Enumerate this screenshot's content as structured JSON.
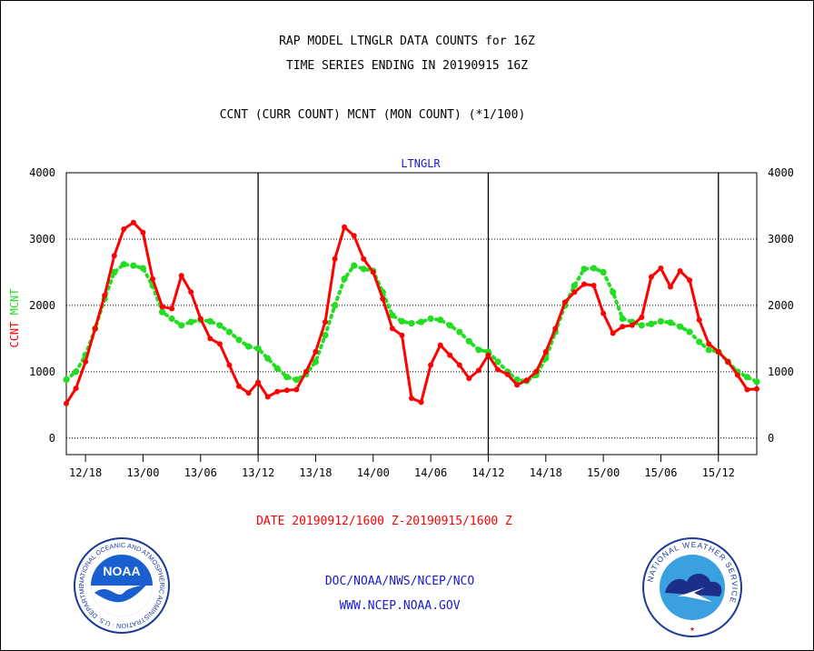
{
  "header": {
    "title_line1": "RAP MODEL LTNGLR DATA COUNTS for 16Z",
    "title_line2": "TIME SERIES ENDING IN 20190915 16Z",
    "subtitle": "CCNT (CURR COUNT) MCNT (MON COUNT) (*1/100)"
  },
  "date_range": "DATE 20190912/1600 Z-20190915/1600 Z",
  "footer": {
    "line1": "DOC/NOAA/NWS/NCEP/NCO",
    "line2": "WWW.NCEP.NOAA.GOV"
  },
  "logos": {
    "left": {
      "name": "NOAA",
      "ring_text": "NATIONAL OCEANIC AND ATMOSPHERIC ADMINISTRATION · U.S. DEPARTMENT OF COMMERCE ·"
    },
    "right": {
      "name": "National Weather Service",
      "ring_text": "NATIONAL WEATHER SERVICE"
    }
  },
  "colors": {
    "ccnt": "#ff0000",
    "mcnt": "#22dd22",
    "label_blue": "#1a1acc",
    "axis": "#000000"
  },
  "chart_data": {
    "type": "line",
    "title": "LTNGLR",
    "ylabel_left": [
      "CCNT",
      "MCNT"
    ],
    "ylim": [
      -250,
      4000
    ],
    "yticks": [
      0,
      1000,
      2000,
      3000,
      4000
    ],
    "x_step_hours": 1,
    "x_start_label": "12/16",
    "x_end_label": "15/16",
    "xticks": [
      {
        "label": "12/18",
        "hour": 2
      },
      {
        "label": "13/00",
        "hour": 8
      },
      {
        "label": "13/06",
        "hour": 14
      },
      {
        "label": "13/12",
        "hour": 20
      },
      {
        "label": "13/18",
        "hour": 26
      },
      {
        "label": "14/00",
        "hour": 32
      },
      {
        "label": "14/06",
        "hour": 38
      },
      {
        "label": "14/12",
        "hour": 44
      },
      {
        "label": "14/18",
        "hour": 50
      },
      {
        "label": "15/00",
        "hour": 56
      },
      {
        "label": "15/06",
        "hour": 62
      },
      {
        "label": "15/12",
        "hour": 68
      }
    ],
    "day_dividers": [
      20,
      44,
      68
    ],
    "grid": "y-dotted",
    "series": [
      {
        "name": "CCNT",
        "values": [
          520,
          750,
          1150,
          1650,
          2150,
          2750,
          3150,
          3250,
          3100,
          2400,
          1980,
          1950,
          2450,
          2200,
          1800,
          1500,
          1420,
          1100,
          780,
          680,
          840,
          620,
          700,
          720,
          730,
          1000,
          1300,
          1750,
          2700,
          3180,
          3050,
          2700,
          2500,
          2100,
          1650,
          1550,
          600,
          540,
          1100,
          1400,
          1250,
          1100,
          900,
          1020,
          1250,
          1030,
          960,
          800,
          870,
          1000,
          1300,
          1650,
          2050,
          2200,
          2320,
          2300,
          1880,
          1580,
          1680,
          1700,
          1820,
          2430,
          2560,
          2280,
          2520,
          2380,
          1780,
          1420,
          1300,
          1150,
          950,
          730,
          740
        ]
      },
      {
        "name": "MCNT",
        "values": [
          880,
          1000,
          1250,
          1650,
          2100,
          2500,
          2620,
          2600,
          2560,
          2300,
          1900,
          1800,
          1700,
          1750,
          1780,
          1760,
          1700,
          1600,
          1480,
          1380,
          1350,
          1200,
          1050,
          920,
          880,
          960,
          1150,
          1550,
          2000,
          2400,
          2600,
          2550,
          2520,
          2200,
          1850,
          1760,
          1730,
          1750,
          1800,
          1780,
          1700,
          1600,
          1460,
          1330,
          1300,
          1150,
          1000,
          880,
          860,
          950,
          1200,
          1600,
          2000,
          2300,
          2550,
          2560,
          2500,
          2200,
          1800,
          1750,
          1700,
          1720,
          1760,
          1740,
          1680,
          1600,
          1450,
          1330,
          1300,
          1150,
          1000,
          920,
          850
        ]
      }
    ]
  }
}
